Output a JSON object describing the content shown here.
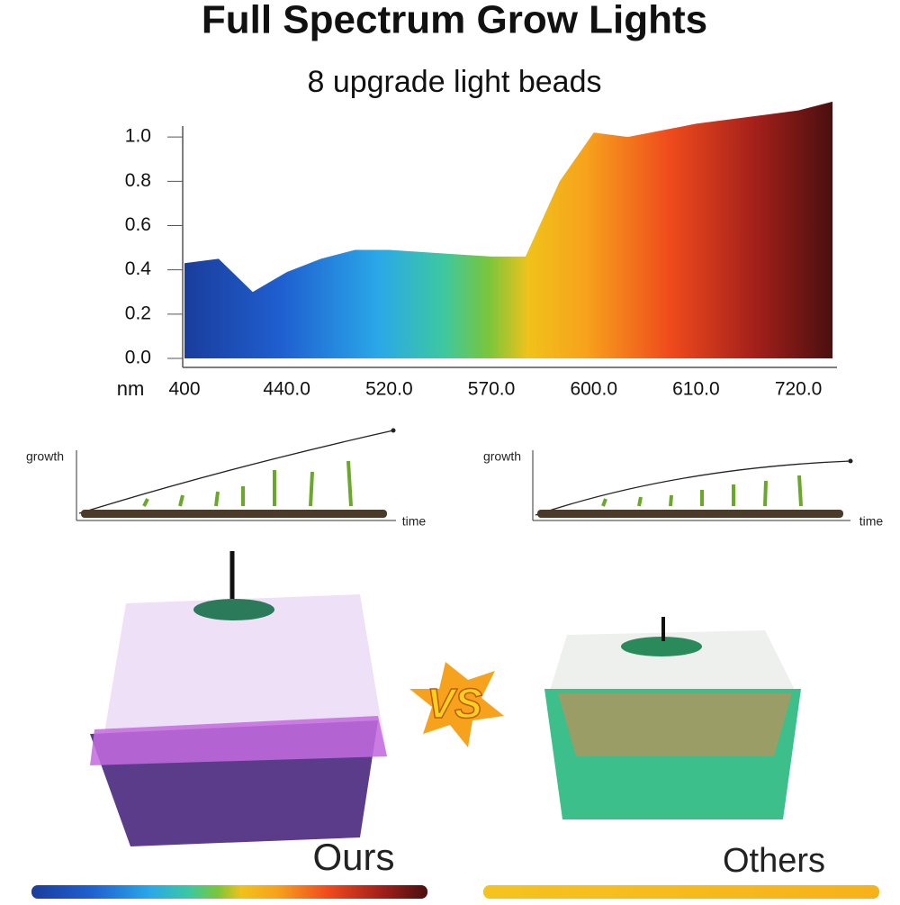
{
  "header": {
    "title": "Full Spectrum Grow Lights",
    "subtitle": "8 upgrade light beads"
  },
  "chart_data": {
    "type": "area",
    "x_label": "nm",
    "categories": [
      "400",
      null,
      null,
      "440.0",
      null,
      null,
      "520.0",
      null,
      null,
      "570.0",
      null,
      null,
      "600.0",
      null,
      null,
      "610.0",
      null,
      null,
      "720.0",
      null
    ],
    "values": [
      0.43,
      0.45,
      0.3,
      0.39,
      0.45,
      0.49,
      0.49,
      0.48,
      0.47,
      0.46,
      0.46,
      0.8,
      1.02,
      1.0,
      1.03,
      1.06,
      1.08,
      1.1,
      1.12,
      1.16
    ],
    "ylim": [
      0,
      1.2
    ],
    "yticks": [
      {
        "value": 0,
        "label": "0.0"
      },
      0.2,
      0.4,
      0.6,
      0.8,
      {
        "value": 1,
        "label": "1.0"
      }
    ]
  },
  "growth_ours": {
    "y_label": "growth",
    "x_label": "time"
  },
  "growth_others": {
    "y_label": "growth",
    "x_label": "time"
  },
  "comparison": {
    "vs": "VS",
    "ours": "Ours",
    "others": "Others"
  }
}
